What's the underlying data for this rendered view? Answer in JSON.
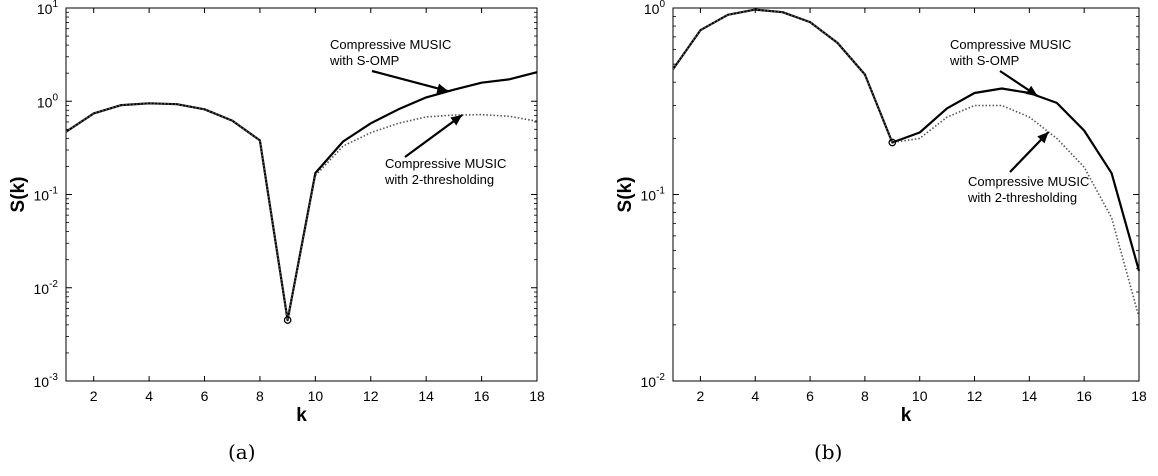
{
  "chart_data": [
    {
      "type": "line",
      "panel_label": "(a)",
      "xlabel": "k",
      "ylabel": "S(k)",
      "y_scale": "log",
      "xlim": [
        1,
        18
      ],
      "ylim": [
        0.001,
        10
      ],
      "x_ticks": [
        "2",
        "4",
        "6",
        "8",
        "10",
        "12",
        "14",
        "16",
        "18"
      ],
      "y_ticks": [
        {
          "base": "10",
          "exp": "-3"
        },
        {
          "base": "10",
          "exp": "-2"
        },
        {
          "base": "10",
          "exp": "-1"
        },
        {
          "base": "10",
          "exp": "0"
        },
        {
          "base": "10",
          "exp": "1"
        }
      ],
      "x": [
        1,
        2,
        3,
        4,
        5,
        6,
        7,
        8,
        9,
        10,
        11,
        12,
        13,
        14,
        15,
        16,
        17,
        18
      ],
      "series": [
        {
          "name": "Compressive MUSIC with S-OMP",
          "style": "solid",
          "values": [
            0.47,
            0.74,
            0.91,
            0.95,
            0.93,
            0.82,
            0.62,
            0.38,
            0.0045,
            0.17,
            0.37,
            0.58,
            0.82,
            1.1,
            1.33,
            1.58,
            1.72,
            2.05
          ]
        },
        {
          "name": "Compressive MUSIC with 2-thresholding",
          "style": "dotted",
          "values": [
            0.47,
            0.74,
            0.91,
            0.95,
            0.93,
            0.82,
            0.62,
            0.38,
            0.0045,
            0.16,
            0.33,
            0.46,
            0.58,
            0.68,
            0.71,
            0.72,
            0.69,
            0.61
          ]
        }
      ],
      "marker": {
        "x": 9,
        "y": 0.0045
      },
      "annotations": [
        {
          "lines": [
            "Compressive MUSIC",
            "with S-OMP"
          ],
          "series": 0,
          "x": 14.8
        },
        {
          "lines": [
            "Compressive MUSIC",
            "with 2-thresholding"
          ],
          "series": 1,
          "x": 15.3
        }
      ],
      "grid": false
    },
    {
      "type": "line",
      "panel_label": "(b)",
      "xlabel": "k",
      "ylabel": "S(k)",
      "y_scale": "log",
      "xlim": [
        1,
        18
      ],
      "ylim": [
        0.01,
        1
      ],
      "x_ticks": [
        "2",
        "4",
        "6",
        "8",
        "10",
        "12",
        "14",
        "16",
        "18"
      ],
      "y_ticks": [
        {
          "base": "10",
          "exp": "-2"
        },
        {
          "base": "10",
          "exp": "-1"
        },
        {
          "base": "10",
          "exp": "0"
        }
      ],
      "x": [
        1,
        2,
        3,
        4,
        5,
        6,
        7,
        8,
        9,
        10,
        11,
        12,
        13,
        14,
        15,
        16,
        17,
        18
      ],
      "series": [
        {
          "name": "Compressive MUSIC with S-OMP",
          "style": "solid",
          "values": [
            0.47,
            0.76,
            0.92,
            0.98,
            0.95,
            0.84,
            0.65,
            0.44,
            0.19,
            0.215,
            0.29,
            0.35,
            0.37,
            0.35,
            0.31,
            0.22,
            0.13,
            0.039
          ]
        },
        {
          "name": "Compressive MUSIC with 2-thresholding",
          "style": "dotted",
          "values": [
            0.47,
            0.76,
            0.92,
            0.98,
            0.95,
            0.84,
            0.65,
            0.44,
            0.19,
            0.2,
            0.26,
            0.3,
            0.3,
            0.26,
            0.2,
            0.14,
            0.075,
            0.022
          ]
        }
      ],
      "marker": {
        "x": 9,
        "y": 0.19
      },
      "annotations": [
        {
          "lines": [
            "Compressive MUSIC",
            "with S-OMP"
          ],
          "series": 0,
          "x": 14.3
        },
        {
          "lines": [
            "Compressive MUSIC",
            "with 2-thresholding"
          ],
          "series": 1,
          "x": 14.7
        }
      ],
      "grid": false
    }
  ]
}
